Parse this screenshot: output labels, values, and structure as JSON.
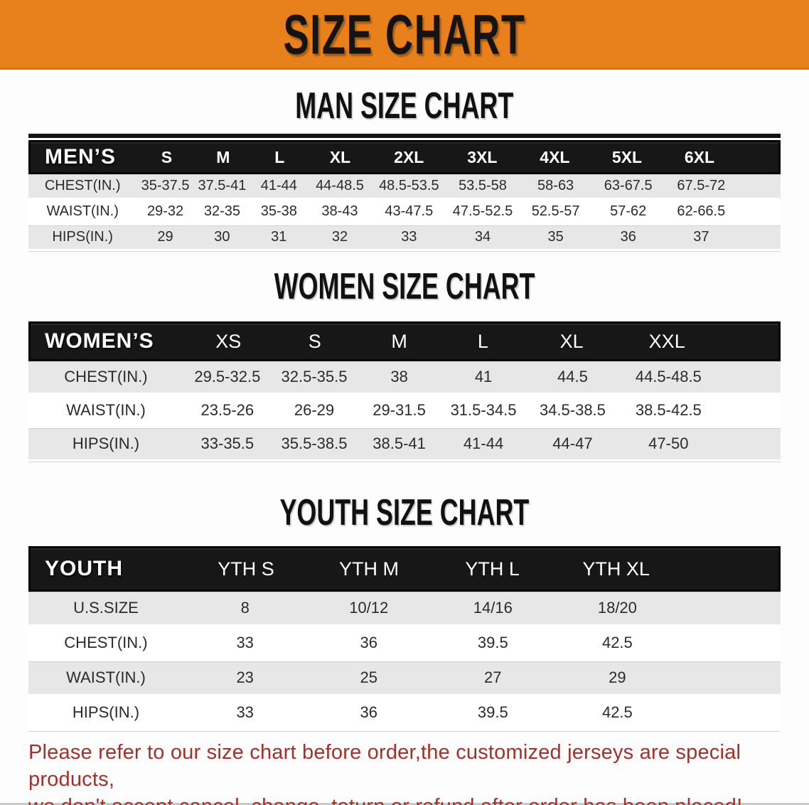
{
  "banner": {
    "title": "SIZE CHART"
  },
  "colors": {
    "banner_bg": "#e8811b",
    "header_bg": "#171717",
    "row_alt": "#e7e7e7",
    "note_red": "#a5302a"
  },
  "men": {
    "heading": "MAN SIZE CHART",
    "label": "MEN’S",
    "sizes": [
      "S",
      "M",
      "L",
      "XL",
      "2XL",
      "3XL",
      "4XL",
      "5XL",
      "6XL"
    ],
    "rows": [
      {
        "label": "CHEST(IN.)",
        "values": [
          "35-37.5",
          "37.5-41",
          "41-44",
          "44-48.5",
          "48.5-53.5",
          "53.5-58",
          "58-63",
          "63-67.5",
          "67.5-72"
        ]
      },
      {
        "label": "WAIST(IN.)",
        "values": [
          "29-32",
          "32-35",
          "35-38",
          "38-43",
          "43-47.5",
          "47.5-52.5",
          "52.5-57",
          "57-62",
          "62-66.5"
        ]
      },
      {
        "label": "HIPS(IN.)",
        "values": [
          "29",
          "30",
          "31",
          "32",
          "33",
          "34",
          "35",
          "36",
          "37"
        ]
      }
    ]
  },
  "women": {
    "heading": "WOMEN SIZE CHART",
    "label": "WOMEN’S",
    "sizes": [
      "XS",
      "S",
      "M",
      "L",
      "XL",
      "XXL"
    ],
    "rows": [
      {
        "label": "CHEST(IN.)",
        "values": [
          "29.5-32.5",
          "32.5-35.5",
          "38",
          "41",
          "44.5",
          "44.5-48.5"
        ]
      },
      {
        "label": "WAIST(IN.)",
        "values": [
          "23.5-26",
          "26-29",
          "29-31.5",
          "31.5-34.5",
          "34.5-38.5",
          "38.5-42.5"
        ]
      },
      {
        "label": "HIPS(IN.)",
        "values": [
          "33-35.5",
          "35.5-38.5",
          "38.5-41",
          "41-44",
          "44-47",
          "47-50"
        ]
      }
    ]
  },
  "youth": {
    "heading": "YOUTH SIZE CHART",
    "label": "YOUTH",
    "sizes": [
      "YTH S",
      "YTH M",
      "YTH L",
      "YTH XL"
    ],
    "rows": [
      {
        "label": "U.S.SIZE",
        "values": [
          "8",
          "10/12",
          "14/16",
          "18/20"
        ]
      },
      {
        "label": "CHEST(IN.)",
        "values": [
          "33",
          "36",
          "39.5",
          "42.5"
        ]
      },
      {
        "label": "WAIST(IN.)",
        "values": [
          "23",
          "25",
          "27",
          "29"
        ]
      },
      {
        "label": "HIPS(IN.)",
        "values": [
          "33",
          "36",
          "39.5",
          "42.5"
        ]
      }
    ]
  },
  "note": {
    "line1": "Please refer to our size chart before order,the customized jerseys are special products,",
    "line2": "we don't accept cancel, change, teturn or refund after order has been placed!"
  }
}
